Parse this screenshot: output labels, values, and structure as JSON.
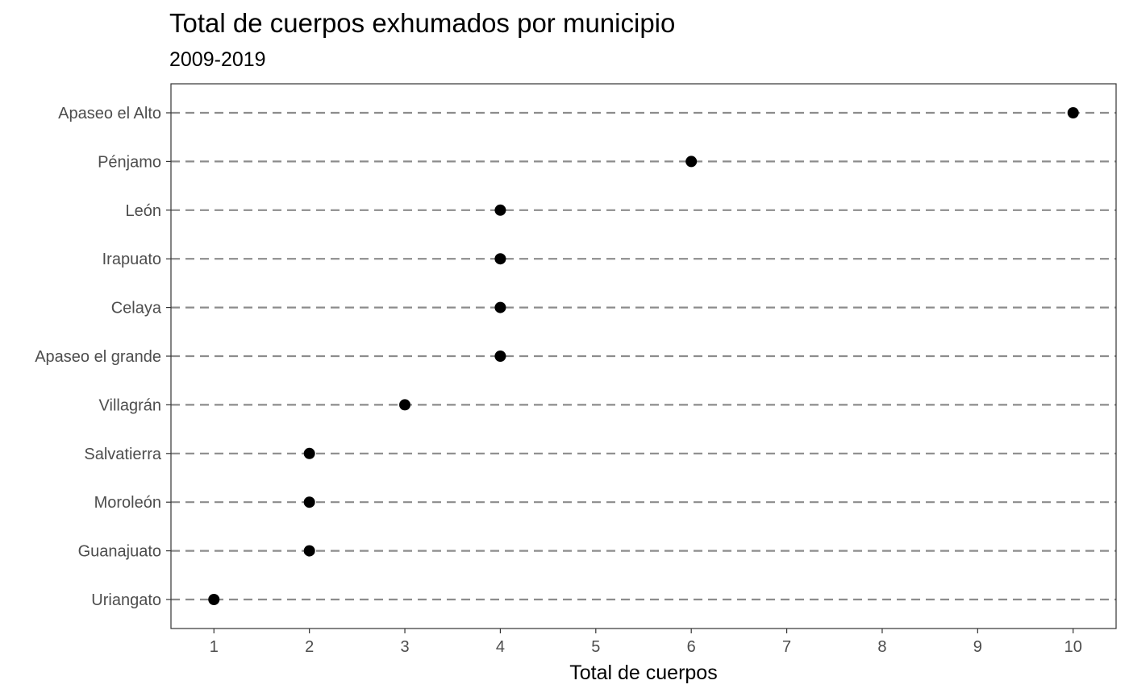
{
  "chart_data": {
    "type": "scatter",
    "title": "Total de cuerpos exhumados por municipio",
    "subtitle": "2009-2019",
    "xlabel": "Total de cuerpos",
    "ylabel": "",
    "categories": [
      "Apaseo el Alto",
      "Pénjamo",
      "León",
      "Irapuato",
      "Celaya",
      "Apaseo el grande",
      "Villagrán",
      "Salvatierra",
      "Moroleón",
      "Guanajuato",
      "Uriangato"
    ],
    "values": [
      10,
      6,
      4,
      4,
      4,
      4,
      3,
      2,
      2,
      2,
      1
    ],
    "xlim": [
      0.55,
      10.45
    ],
    "x_ticks": [
      "1",
      "2",
      "3",
      "4",
      "5",
      "6",
      "7",
      "8",
      "9",
      "10"
    ],
    "grid": "horizontal dashed lines per category",
    "legend": "none",
    "colors": {
      "point": "#000000",
      "gridline": "#8c8c8c",
      "panel_border": "#333333",
      "tick_label": "#4d4d4d"
    }
  }
}
